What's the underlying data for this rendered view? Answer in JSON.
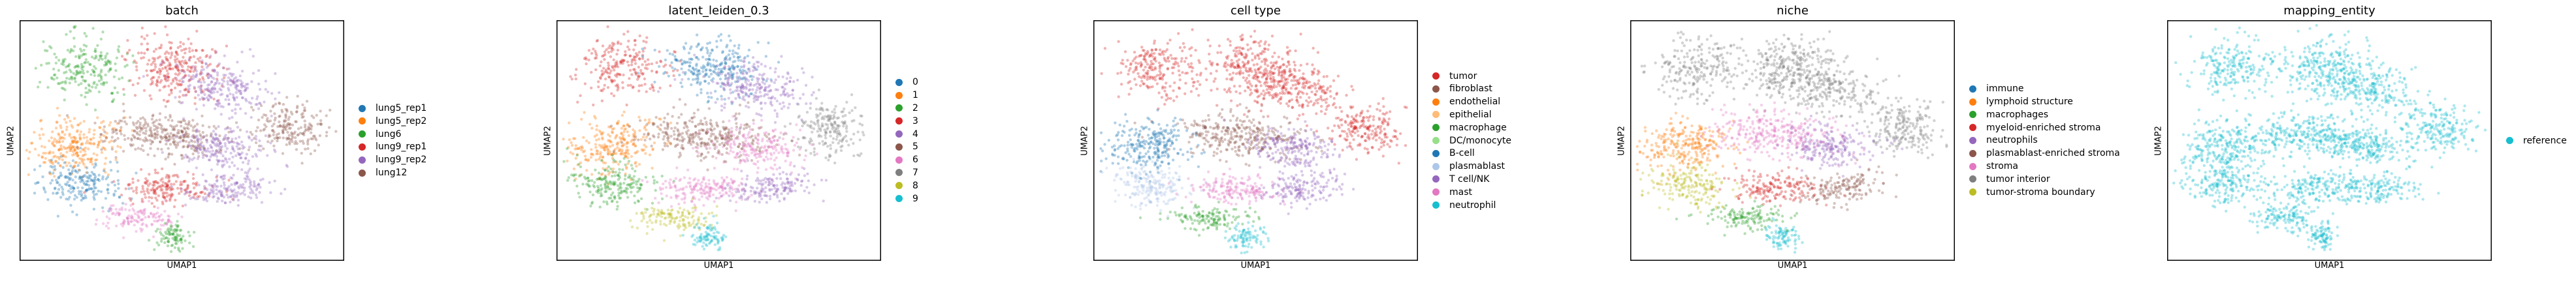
{
  "chart_data": [
    {
      "type": "scatter",
      "title": "batch",
      "xlabel": "UMAP1",
      "ylabel": "UMAP2",
      "grid": false,
      "legend_placement": "right",
      "series": [
        {
          "name": "lung5_rep1",
          "color": "#1f77b4"
        },
        {
          "name": "lung5_rep2",
          "color": "#ff7f0e"
        },
        {
          "name": "lung6",
          "color": "#2ca02c"
        },
        {
          "name": "lung9_rep1",
          "color": "#d62728"
        },
        {
          "name": "lung9_rep2",
          "color": "#9467bd"
        },
        {
          "name": "lung12",
          "color": "#8c564b"
        }
      ]
    },
    {
      "type": "scatter",
      "title": "latent_leiden_0.3",
      "xlabel": "UMAP1",
      "ylabel": "UMAP2",
      "grid": false,
      "legend_placement": "right",
      "series": [
        {
          "name": "0",
          "color": "#1f77b4"
        },
        {
          "name": "1",
          "color": "#ff7f0e"
        },
        {
          "name": "2",
          "color": "#2ca02c"
        },
        {
          "name": "3",
          "color": "#d62728"
        },
        {
          "name": "4",
          "color": "#9467bd"
        },
        {
          "name": "5",
          "color": "#8c564b"
        },
        {
          "name": "6",
          "color": "#e377c2"
        },
        {
          "name": "7",
          "color": "#7f7f7f"
        },
        {
          "name": "8",
          "color": "#bcbd22"
        },
        {
          "name": "9",
          "color": "#17becf"
        }
      ]
    },
    {
      "type": "scatter",
      "title": "cell type",
      "xlabel": "UMAP1",
      "ylabel": "UMAP2",
      "grid": false,
      "legend_placement": "right",
      "series": [
        {
          "name": "tumor",
          "color": "#d62728"
        },
        {
          "name": "fibroblast",
          "color": "#8c564b"
        },
        {
          "name": "endothelial",
          "color": "#ff7f0e"
        },
        {
          "name": "epithelial",
          "color": "#ffbb78"
        },
        {
          "name": "macrophage",
          "color": "#2ca02c"
        },
        {
          "name": "DC/monocyte",
          "color": "#98df8a"
        },
        {
          "name": "B-cell",
          "color": "#1f77b4"
        },
        {
          "name": "plasmablast",
          "color": "#aec7e8"
        },
        {
          "name": "T cell/NK",
          "color": "#9467bd"
        },
        {
          "name": "mast",
          "color": "#e377c2"
        },
        {
          "name": "neutrophil",
          "color": "#17becf"
        }
      ]
    },
    {
      "type": "scatter",
      "title": "niche",
      "xlabel": "UMAP1",
      "ylabel": "UMAP2",
      "grid": false,
      "legend_placement": "right",
      "series": [
        {
          "name": "immune",
          "color": "#1f77b4"
        },
        {
          "name": "lymphoid structure",
          "color": "#ff7f0e"
        },
        {
          "name": "macrophages",
          "color": "#2ca02c"
        },
        {
          "name": "myeloid-enriched stroma",
          "color": "#d62728"
        },
        {
          "name": "neutrophils",
          "color": "#9467bd"
        },
        {
          "name": "plasmablast-enriched stroma",
          "color": "#8c564b"
        },
        {
          "name": "stroma",
          "color": "#e377c2"
        },
        {
          "name": "tumor interior",
          "color": "#7f7f7f"
        },
        {
          "name": "tumor-stroma boundary",
          "color": "#bcbd22"
        }
      ]
    },
    {
      "type": "scatter",
      "title": "mapping_entity",
      "xlabel": "UMAP1",
      "ylabel": "UMAP2",
      "grid": false,
      "legend_placement": "right",
      "series": [
        {
          "name": "reference",
          "color": "#17becf"
        }
      ]
    }
  ]
}
